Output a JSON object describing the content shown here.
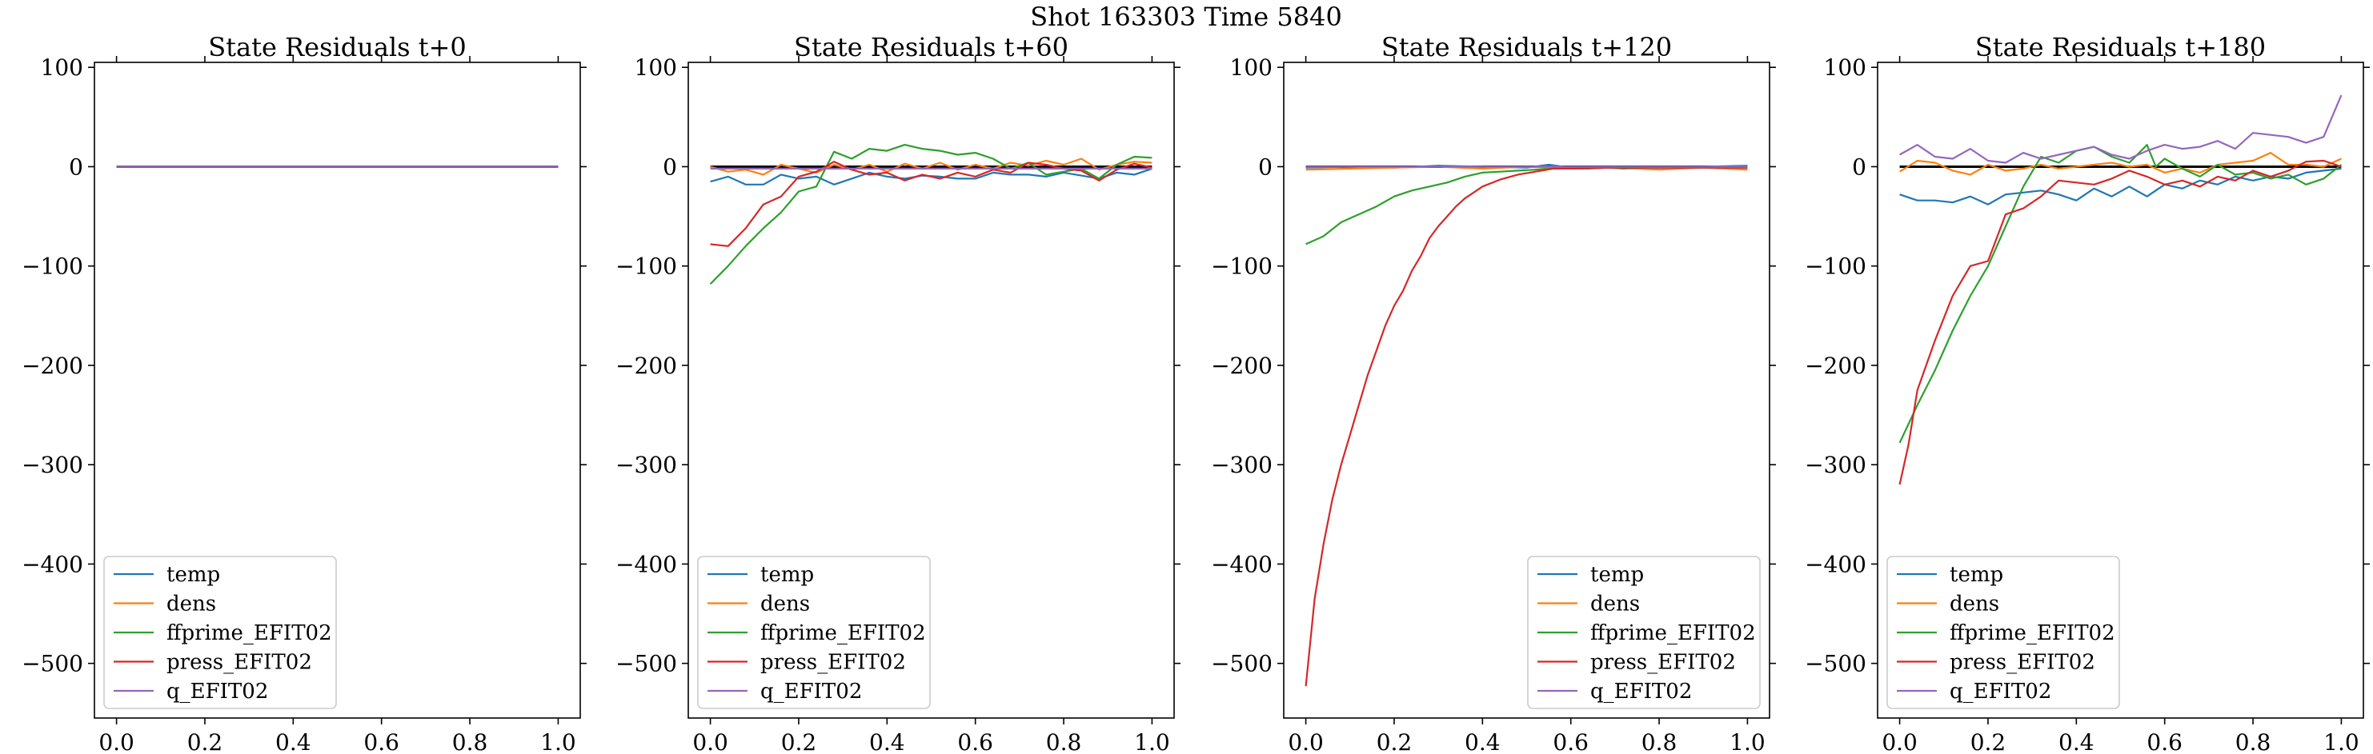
{
  "suptitle": "Shot 163303   Time 5840",
  "colors": {
    "temp": "#1f77b4",
    "dens": "#ff7f0e",
    "ffprime_EFIT02": "#2ca02c",
    "press_EFIT02": "#d62728",
    "q_EFIT02": "#9467bd",
    "zero_line": "#000000"
  },
  "chart_data": [
    {
      "type": "line",
      "title": "State Residuals t+0",
      "xlabel": "",
      "ylabel": "",
      "xlim": [
        -0.05,
        1.05
      ],
      "ylim": [
        -555,
        105
      ],
      "xticks": [
        0.0,
        0.2,
        0.4,
        0.6,
        0.8,
        1.0
      ],
      "yticks": [
        100,
        0,
        -100,
        -200,
        -300,
        -400,
        -500
      ],
      "legend": "lower-left",
      "legend_entries": [
        "temp",
        "dens",
        "ffprime_EFIT02",
        "press_EFIT02",
        "q_EFIT02"
      ],
      "series": [
        {
          "name": "temp",
          "x": [
            0.0,
            1.0
          ],
          "y": [
            0,
            0
          ]
        },
        {
          "name": "dens",
          "x": [
            0.0,
            1.0
          ],
          "y": [
            0,
            0
          ]
        },
        {
          "name": "ffprime_EFIT02",
          "x": [
            0.0,
            1.0
          ],
          "y": [
            0,
            0
          ]
        },
        {
          "name": "press_EFIT02",
          "x": [
            0.0,
            1.0
          ],
          "y": [
            0,
            0
          ]
        },
        {
          "name": "q_EFIT02",
          "x": [
            0.0,
            1.0
          ],
          "y": [
            0,
            0
          ]
        }
      ]
    },
    {
      "type": "line",
      "title": "State Residuals t+60",
      "xlabel": "",
      "ylabel": "",
      "xlim": [
        -0.05,
        1.05
      ],
      "ylim": [
        -555,
        105
      ],
      "xticks": [
        0.0,
        0.2,
        0.4,
        0.6,
        0.8,
        1.0
      ],
      "yticks": [
        100,
        0,
        -100,
        -200,
        -300,
        -400,
        -500
      ],
      "legend": "lower-left",
      "legend_entries": [
        "temp",
        "dens",
        "ffprime_EFIT02",
        "press_EFIT02",
        "q_EFIT02"
      ],
      "series": [
        {
          "name": "temp",
          "x": [
            0.0,
            0.04,
            0.08,
            0.12,
            0.16,
            0.2,
            0.24,
            0.28,
            0.32,
            0.36,
            0.4,
            0.44,
            0.48,
            0.52,
            0.56,
            0.6,
            0.64,
            0.68,
            0.72,
            0.76,
            0.8,
            0.84,
            0.88,
            0.92,
            0.96,
            1.0
          ],
          "y": [
            -15,
            -10,
            -18,
            -18,
            -8,
            -12,
            -10,
            -18,
            -12,
            -6,
            -10,
            -12,
            -9,
            -10,
            -12,
            -12,
            -6,
            -8,
            -8,
            -10,
            -6,
            -9,
            -12,
            -6,
            -8,
            -2
          ]
        },
        {
          "name": "dens",
          "x": [
            0.0,
            0.04,
            0.08,
            0.12,
            0.16,
            0.2,
            0.24,
            0.28,
            0.32,
            0.36,
            0.4,
            0.44,
            0.48,
            0.52,
            0.56,
            0.6,
            0.64,
            0.68,
            0.72,
            0.76,
            0.8,
            0.84,
            0.88,
            0.92,
            0.96,
            1.0
          ],
          "y": [
            0,
            -5,
            -3,
            -8,
            2,
            -2,
            -6,
            2,
            -3,
            2,
            -5,
            3,
            -2,
            4,
            -3,
            2,
            -2,
            4,
            1,
            6,
            2,
            8,
            -3,
            2,
            5,
            4
          ]
        },
        {
          "name": "ffprime_EFIT02",
          "x": [
            0.0,
            0.04,
            0.08,
            0.12,
            0.16,
            0.2,
            0.24,
            0.28,
            0.32,
            0.36,
            0.4,
            0.44,
            0.48,
            0.52,
            0.56,
            0.6,
            0.64,
            0.68,
            0.72,
            0.76,
            0.8,
            0.84,
            0.88,
            0.92,
            0.96,
            1.0
          ],
          "y": [
            -118,
            -100,
            -80,
            -62,
            -46,
            -25,
            -20,
            15,
            8,
            18,
            16,
            22,
            18,
            16,
            12,
            14,
            8,
            -2,
            4,
            -8,
            -5,
            -2,
            -12,
            2,
            10,
            9
          ]
        },
        {
          "name": "press_EFIT02",
          "x": [
            0.0,
            0.04,
            0.08,
            0.12,
            0.16,
            0.2,
            0.24,
            0.28,
            0.32,
            0.36,
            0.4,
            0.44,
            0.48,
            0.52,
            0.56,
            0.6,
            0.64,
            0.68,
            0.72,
            0.76,
            0.8,
            0.84,
            0.88,
            0.92,
            0.96,
            1.0
          ],
          "y": [
            -78,
            -80,
            -62,
            -38,
            -30,
            -10,
            -5,
            5,
            -3,
            -8,
            -6,
            -14,
            -8,
            -12,
            -6,
            -10,
            -3,
            -6,
            4,
            2,
            -2,
            -4,
            -14,
            -3,
            3,
            -1
          ]
        },
        {
          "name": "q_EFIT02",
          "x": [
            0.0,
            1.0
          ],
          "y": [
            -2,
            -2
          ]
        }
      ]
    },
    {
      "type": "line",
      "title": "State Residuals t+120",
      "xlabel": "",
      "ylabel": "",
      "xlim": [
        -0.05,
        1.05
      ],
      "ylim": [
        -555,
        105
      ],
      "xticks": [
        0.0,
        0.2,
        0.4,
        0.6,
        0.8,
        1.0
      ],
      "yticks": [
        100,
        0,
        -100,
        -200,
        -300,
        -400,
        -500
      ],
      "legend": "lower-right",
      "legend_entries": [
        "temp",
        "dens",
        "ffprime_EFIT02",
        "press_EFIT02",
        "q_EFIT02"
      ],
      "series": [
        {
          "name": "temp",
          "x": [
            0.0,
            0.1,
            0.2,
            0.3,
            0.4,
            0.5,
            0.55,
            0.6,
            0.7,
            0.8,
            0.9,
            1.0
          ],
          "y": [
            -1,
            0,
            -1,
            1,
            0,
            -1,
            2,
            -1,
            0,
            -1,
            0,
            1
          ]
        },
        {
          "name": "dens",
          "x": [
            0.0,
            0.1,
            0.2,
            0.3,
            0.4,
            0.5,
            0.6,
            0.7,
            0.8,
            0.9,
            1.0
          ],
          "y": [
            -3,
            -2,
            -1,
            0,
            -2,
            0,
            -2,
            -1,
            -3,
            -1,
            -3
          ]
        },
        {
          "name": "ffprime_EFIT02",
          "x": [
            0.0,
            0.04,
            0.08,
            0.12,
            0.16,
            0.2,
            0.24,
            0.28,
            0.32,
            0.36,
            0.4,
            0.44,
            0.48,
            0.52,
            0.56,
            0.6,
            0.64,
            0.68,
            0.72,
            0.76,
            0.8,
            0.84,
            0.88,
            0.92,
            0.96,
            1.0
          ],
          "y": [
            -78,
            -70,
            -56,
            -48,
            -40,
            -30,
            -24,
            -20,
            -16,
            -10,
            -6,
            -5,
            -4,
            -3,
            -2,
            -2,
            -2,
            -1,
            -2,
            -1,
            -1,
            -1,
            -1,
            -1,
            -1,
            -1
          ]
        },
        {
          "name": "press_EFIT02",
          "x": [
            0.0,
            0.02,
            0.04,
            0.06,
            0.08,
            0.1,
            0.12,
            0.14,
            0.16,
            0.18,
            0.2,
            0.22,
            0.24,
            0.26,
            0.28,
            0.3,
            0.32,
            0.34,
            0.36,
            0.38,
            0.4,
            0.44,
            0.48,
            0.52,
            0.56,
            0.6,
            0.7,
            0.8,
            0.9,
            1.0
          ],
          "y": [
            -523,
            -435,
            -380,
            -335,
            -300,
            -270,
            -240,
            -210,
            -185,
            -160,
            -140,
            -125,
            -105,
            -90,
            -72,
            -60,
            -50,
            -40,
            -32,
            -26,
            -20,
            -13,
            -8,
            -5,
            -2,
            -2,
            -1,
            -1,
            -1,
            -1
          ]
        },
        {
          "name": "q_EFIT02",
          "x": [
            0.0,
            1.0
          ],
          "y": [
            0,
            0
          ]
        }
      ]
    },
    {
      "type": "line",
      "title": "State Residuals t+180",
      "xlabel": "",
      "ylabel": "",
      "xlim": [
        -0.05,
        1.05
      ],
      "ylim": [
        -555,
        105
      ],
      "xticks": [
        0.0,
        0.2,
        0.4,
        0.6,
        0.8,
        1.0
      ],
      "yticks": [
        100,
        0,
        -100,
        -200,
        -300,
        -400,
        -500
      ],
      "legend": "lower-left",
      "legend_entries": [
        "temp",
        "dens",
        "ffprime_EFIT02",
        "press_EFIT02",
        "q_EFIT02"
      ],
      "series": [
        {
          "name": "temp",
          "x": [
            0.0,
            0.04,
            0.08,
            0.12,
            0.16,
            0.2,
            0.24,
            0.28,
            0.32,
            0.36,
            0.4,
            0.44,
            0.48,
            0.52,
            0.56,
            0.6,
            0.64,
            0.68,
            0.72,
            0.76,
            0.8,
            0.84,
            0.88,
            0.92,
            0.96,
            1.0
          ],
          "y": [
            -28,
            -34,
            -34,
            -36,
            -30,
            -38,
            -28,
            -26,
            -24,
            -28,
            -34,
            -22,
            -30,
            -20,
            -30,
            -18,
            -22,
            -14,
            -18,
            -10,
            -14,
            -10,
            -12,
            -6,
            -4,
            -2
          ]
        },
        {
          "name": "dens",
          "x": [
            0.0,
            0.04,
            0.08,
            0.12,
            0.16,
            0.2,
            0.24,
            0.28,
            0.32,
            0.36,
            0.4,
            0.44,
            0.48,
            0.52,
            0.56,
            0.6,
            0.64,
            0.68,
            0.72,
            0.76,
            0.8,
            0.84,
            0.88,
            0.92,
            0.96,
            1.0
          ],
          "y": [
            -5,
            6,
            4,
            -4,
            -8,
            2,
            -4,
            -2,
            2,
            -2,
            0,
            2,
            4,
            0,
            2,
            -6,
            -2,
            -6,
            2,
            4,
            6,
            14,
            2,
            2,
            0,
            8
          ]
        },
        {
          "name": "ffprime_EFIT02",
          "x": [
            0.0,
            0.04,
            0.08,
            0.12,
            0.16,
            0.2,
            0.24,
            0.28,
            0.32,
            0.36,
            0.4,
            0.44,
            0.48,
            0.52,
            0.56,
            0.58,
            0.6,
            0.64,
            0.68,
            0.72,
            0.76,
            0.8,
            0.84,
            0.88,
            0.92,
            0.96,
            1.0
          ],
          "y": [
            -278,
            -240,
            -205,
            -165,
            -130,
            -100,
            -60,
            -20,
            10,
            4,
            16,
            20,
            10,
            4,
            22,
            0,
            8,
            -2,
            -10,
            2,
            -8,
            -6,
            -12,
            -8,
            -18,
            -12,
            2
          ]
        },
        {
          "name": "press_EFIT02",
          "x": [
            0.0,
            0.02,
            0.04,
            0.08,
            0.12,
            0.16,
            0.2,
            0.24,
            0.28,
            0.32,
            0.36,
            0.4,
            0.44,
            0.48,
            0.52,
            0.56,
            0.6,
            0.64,
            0.68,
            0.72,
            0.76,
            0.8,
            0.84,
            0.88,
            0.92,
            0.96,
            1.0
          ],
          "y": [
            -320,
            -280,
            -225,
            -175,
            -130,
            -100,
            -95,
            -48,
            -42,
            -30,
            -14,
            -16,
            -18,
            -12,
            -4,
            -10,
            -18,
            -14,
            -20,
            -10,
            -14,
            -4,
            -10,
            -4,
            5,
            6,
            0
          ]
        },
        {
          "name": "q_EFIT02",
          "x": [
            0.0,
            0.04,
            0.08,
            0.12,
            0.16,
            0.2,
            0.24,
            0.28,
            0.32,
            0.36,
            0.4,
            0.44,
            0.48,
            0.52,
            0.56,
            0.6,
            0.64,
            0.68,
            0.72,
            0.76,
            0.8,
            0.84,
            0.88,
            0.92,
            0.96,
            1.0
          ],
          "y": [
            12,
            22,
            10,
            8,
            18,
            6,
            4,
            14,
            8,
            12,
            16,
            20,
            12,
            8,
            16,
            22,
            18,
            20,
            26,
            18,
            34,
            32,
            30,
            24,
            30,
            72
          ]
        }
      ]
    }
  ]
}
